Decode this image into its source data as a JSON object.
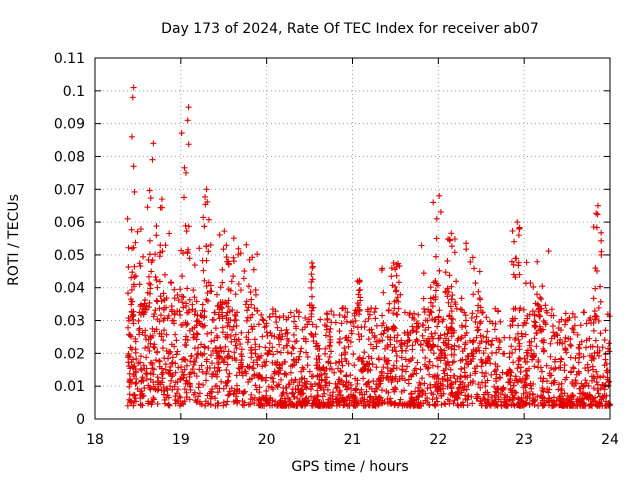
{
  "chart_data": {
    "type": "scatter",
    "title": "Day 173 of 2024, Rate Of TEC Index for receiver ab07",
    "xlabel": "GPS time / hours",
    "ylabel": "ROTI / TECUs",
    "xlim": [
      18,
      24
    ],
    "ylim": [
      0,
      0.11
    ],
    "x_ticks": [
      "18",
      "19",
      "20",
      "21",
      "22",
      "23",
      "24"
    ],
    "y_ticks": [
      "0",
      "0.01",
      "0.02",
      "0.03",
      "0.04",
      "0.05",
      "0.06",
      "0.07",
      "0.08",
      "0.09",
      "0.1",
      "0.11"
    ],
    "grid": true,
    "marker": "+",
    "color": "#e00000",
    "series": [
      {
        "name": "ROTI",
        "notable_points": [
          {
            "x": 18.45,
            "y": 0.101
          },
          {
            "x": 18.44,
            "y": 0.098
          },
          {
            "x": 18.43,
            "y": 0.086
          },
          {
            "x": 18.68,
            "y": 0.084
          },
          {
            "x": 19.09,
            "y": 0.095
          },
          {
            "x": 19.08,
            "y": 0.091
          },
          {
            "x": 18.45,
            "y": 0.077
          },
          {
            "x": 18.67,
            "y": 0.079
          },
          {
            "x": 19.06,
            "y": 0.075
          },
          {
            "x": 19.3,
            "y": 0.07
          },
          {
            "x": 18.78,
            "y": 0.067
          },
          {
            "x": 21.94,
            "y": 0.066
          },
          {
            "x": 22.01,
            "y": 0.068
          },
          {
            "x": 23.86,
            "y": 0.065
          },
          {
            "x": 22.92,
            "y": 0.06
          },
          {
            "x": 18.38,
            "y": 0.061
          },
          {
            "x": 23.9,
            "y": 0.051
          },
          {
            "x": 23.83,
            "y": 0.046
          },
          {
            "x": 22.88,
            "y": 0.044
          },
          {
            "x": 23.15,
            "y": 0.038
          }
        ]
      }
    ]
  }
}
